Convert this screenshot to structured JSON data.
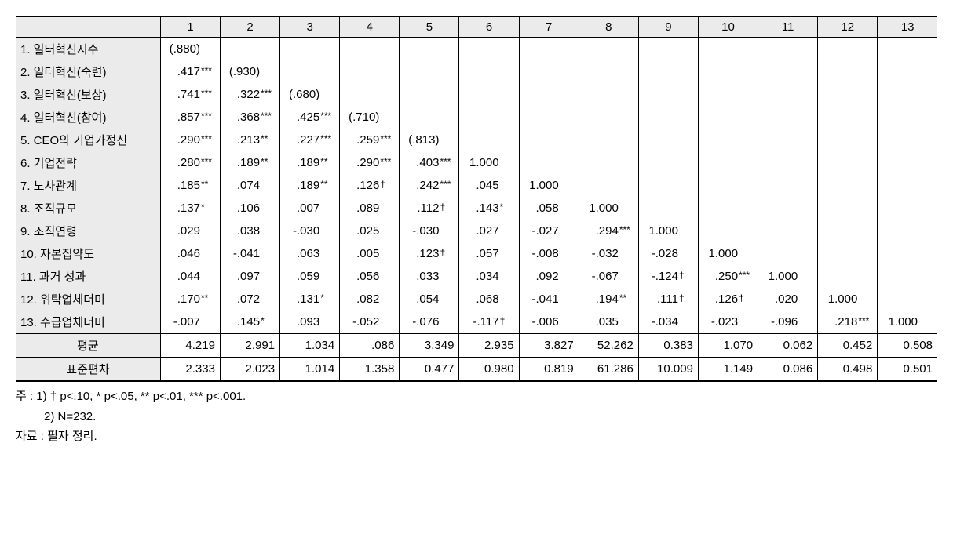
{
  "columns": [
    "1",
    "2",
    "3",
    "4",
    "5",
    "6",
    "7",
    "8",
    "9",
    "10",
    "11",
    "12",
    "13"
  ],
  "row_labels": [
    "1. 일터혁신지수",
    "2. 일터혁신(숙련)",
    "3. 일터혁신(보상)",
    "4. 일터혁신(참여)",
    "5. CEO의 기업가정신",
    "6. 기업전략",
    "7. 노사관계",
    "8. 조직규모",
    "9. 조직연령",
    "10. 자본집약도",
    "11. 과거 성과",
    "12. 위탁업체더미",
    "13. 수급업체더미"
  ],
  "matrix": [
    [
      {
        "v": "(.880)",
        "s": ""
      }
    ],
    [
      {
        "v": ".417",
        "s": "***"
      },
      {
        "v": "(.930)",
        "s": ""
      }
    ],
    [
      {
        "v": ".741",
        "s": "***"
      },
      {
        "v": ".322",
        "s": "***"
      },
      {
        "v": "(.680)",
        "s": ""
      }
    ],
    [
      {
        "v": ".857",
        "s": "***"
      },
      {
        "v": ".368",
        "s": "***"
      },
      {
        "v": ".425",
        "s": "***"
      },
      {
        "v": "(.710)",
        "s": ""
      }
    ],
    [
      {
        "v": ".290",
        "s": "***"
      },
      {
        "v": ".213",
        "s": "**"
      },
      {
        "v": ".227",
        "s": "***"
      },
      {
        "v": ".259",
        "s": "***"
      },
      {
        "v": "(.813)",
        "s": ""
      }
    ],
    [
      {
        "v": ".280",
        "s": "***"
      },
      {
        "v": ".189",
        "s": "**"
      },
      {
        "v": ".189",
        "s": "**"
      },
      {
        "v": ".290",
        "s": "***"
      },
      {
        "v": ".403",
        "s": "***"
      },
      {
        "v": "1.000",
        "s": ""
      }
    ],
    [
      {
        "v": ".185",
        "s": "**"
      },
      {
        "v": ".074",
        "s": ""
      },
      {
        "v": ".189",
        "s": "**"
      },
      {
        "v": ".126",
        "s": "†"
      },
      {
        "v": ".242",
        "s": "***"
      },
      {
        "v": ".045",
        "s": ""
      },
      {
        "v": "1.000",
        "s": ""
      }
    ],
    [
      {
        "v": ".137",
        "s": "*"
      },
      {
        "v": ".106",
        "s": ""
      },
      {
        "v": ".007",
        "s": ""
      },
      {
        "v": ".089",
        "s": ""
      },
      {
        "v": ".112",
        "s": "†"
      },
      {
        "v": ".143",
        "s": "*"
      },
      {
        "v": ".058",
        "s": ""
      },
      {
        "v": "1.000",
        "s": ""
      }
    ],
    [
      {
        "v": ".029",
        "s": ""
      },
      {
        "v": ".038",
        "s": ""
      },
      {
        "v": "-.030",
        "s": ""
      },
      {
        "v": ".025",
        "s": ""
      },
      {
        "v": "-.030",
        "s": ""
      },
      {
        "v": ".027",
        "s": ""
      },
      {
        "v": "-.027",
        "s": ""
      },
      {
        "v": ".294",
        "s": "***"
      },
      {
        "v": "1.000",
        "s": ""
      }
    ],
    [
      {
        "v": ".046",
        "s": ""
      },
      {
        "v": "-.041",
        "s": ""
      },
      {
        "v": ".063",
        "s": ""
      },
      {
        "v": ".005",
        "s": ""
      },
      {
        "v": ".123",
        "s": "†"
      },
      {
        "v": ".057",
        "s": ""
      },
      {
        "v": "-.008",
        "s": ""
      },
      {
        "v": "-.032",
        "s": ""
      },
      {
        "v": "-.028",
        "s": ""
      },
      {
        "v": "1.000",
        "s": ""
      }
    ],
    [
      {
        "v": ".044",
        "s": ""
      },
      {
        "v": ".097",
        "s": ""
      },
      {
        "v": ".059",
        "s": ""
      },
      {
        "v": ".056",
        "s": ""
      },
      {
        "v": ".033",
        "s": ""
      },
      {
        "v": ".034",
        "s": ""
      },
      {
        "v": ".092",
        "s": ""
      },
      {
        "v": "-.067",
        "s": ""
      },
      {
        "v": "-.124",
        "s": "†"
      },
      {
        "v": ".250",
        "s": "***"
      },
      {
        "v": "1.000",
        "s": ""
      }
    ],
    [
      {
        "v": ".170",
        "s": "**"
      },
      {
        "v": ".072",
        "s": ""
      },
      {
        "v": ".131",
        "s": "*"
      },
      {
        "v": ".082",
        "s": ""
      },
      {
        "v": ".054",
        "s": ""
      },
      {
        "v": ".068",
        "s": ""
      },
      {
        "v": "-.041",
        "s": ""
      },
      {
        "v": ".194",
        "s": "**"
      },
      {
        "v": ".111",
        "s": "†"
      },
      {
        "v": ".126",
        "s": "†"
      },
      {
        "v": ".020",
        "s": ""
      },
      {
        "v": "1.000",
        "s": ""
      }
    ],
    [
      {
        "v": "-.007",
        "s": ""
      },
      {
        "v": ".145",
        "s": "*"
      },
      {
        "v": ".093",
        "s": ""
      },
      {
        "v": "-.052",
        "s": ""
      },
      {
        "v": "-.076",
        "s": ""
      },
      {
        "v": "-.117",
        "s": "†"
      },
      {
        "v": "-.006",
        "s": ""
      },
      {
        "v": ".035",
        "s": ""
      },
      {
        "v": "-.034",
        "s": ""
      },
      {
        "v": "-.023",
        "s": ""
      },
      {
        "v": "-.096",
        "s": ""
      },
      {
        "v": ".218",
        "s": "***"
      },
      {
        "v": "1.000",
        "s": ""
      }
    ]
  ],
  "mean_label": "평균",
  "mean": [
    "4.219",
    "2.991",
    "1.034",
    ".086",
    "3.349",
    "2.935",
    "3.827",
    "52.262",
    "0.383",
    "1.070",
    "0.062",
    "0.452",
    "0.508"
  ],
  "sd_label": "표준편차",
  "sd": [
    "2.333",
    "2.023",
    "1.014",
    "1.358",
    "0.477",
    "0.980",
    "0.819",
    "61.286",
    "10.009",
    "1.149",
    "0.086",
    "0.498",
    "0.501"
  ],
  "notes": {
    "line1": "주 : 1) † p<.10,  * p<.05,  ** p<.01,  *** p<.001.",
    "line2": "2) N=232.",
    "line3": "자료 : 필자 정리."
  },
  "style": {
    "font_family": "Malgun Gothic",
    "bg_shade": "#ebebeb",
    "border_color": "#000000"
  }
}
